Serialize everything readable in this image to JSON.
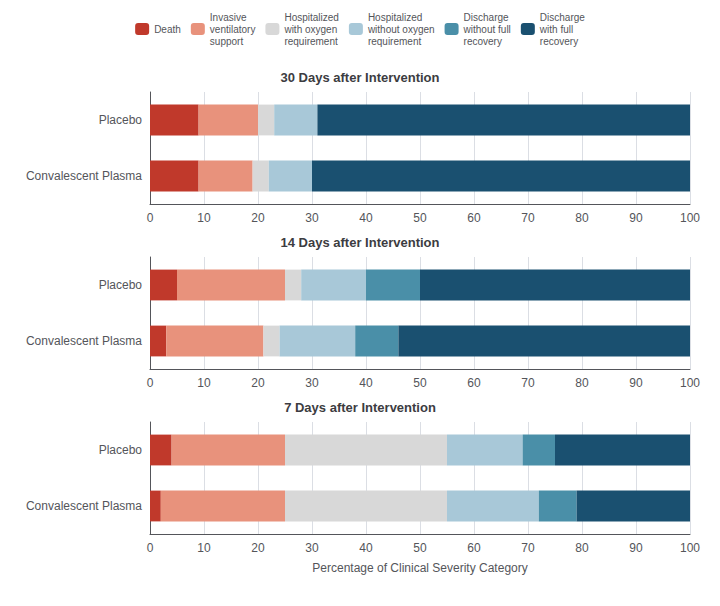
{
  "chart_data": [
    {
      "type": "bar",
      "title": "30 Days after Intervention",
      "orientation": "horizontal",
      "stacked": true,
      "grid": true,
      "legend": "top",
      "categories": [
        "Placebo",
        "Convalescent Plasma"
      ],
      "series": [
        {
          "name": "Death",
          "color": "#C0392B",
          "values": [
            9,
            9
          ]
        },
        {
          "name": "Invasive\nventilatory\nsupport",
          "color": "#E8927C",
          "values": [
            11,
            10
          ]
        },
        {
          "name": "Hospitalized\nwith oxygen\nrequirement",
          "color": "#D8D8D8",
          "values": [
            3,
            3
          ]
        },
        {
          "name": "Hospitalized\nwithout oxygen\nrequirement",
          "color": "#A8C8D8",
          "values": [
            8,
            8
          ]
        },
        {
          "name": "Discharge\nwithout full\nrecovery",
          "color": "#4A8FA8",
          "values": [
            0,
            0
          ]
        },
        {
          "name": "Discharge\nwith full\nrecovery",
          "color": "#1A5070",
          "values": [
            69,
            70
          ]
        }
      ],
      "xlim": [
        0,
        100
      ],
      "xticks": [
        0,
        10,
        20,
        30,
        40,
        50,
        60,
        70,
        80,
        90,
        100
      ]
    },
    {
      "type": "bar",
      "title": "14 Days after Intervention",
      "orientation": "horizontal",
      "stacked": true,
      "grid": true,
      "categories": [
        "Placebo",
        "Convalescent Plasma"
      ],
      "series": [
        {
          "name": "Death",
          "color": "#C0392B",
          "values": [
            5,
            3
          ]
        },
        {
          "name": "Invasive\nventilatory\nsupport",
          "color": "#E8927C",
          "values": [
            20,
            18
          ]
        },
        {
          "name": "Hospitalized\nwith oxygen\nrequirement",
          "color": "#D8D8D8",
          "values": [
            3,
            3
          ]
        },
        {
          "name": "Hospitalized\nwithout oxygen\nrequirement",
          "color": "#A8C8D8",
          "values": [
            12,
            14
          ]
        },
        {
          "name": "Discharge\nwithout full\nrecovery",
          "color": "#4A8FA8",
          "values": [
            10,
            8
          ]
        },
        {
          "name": "Discharge\nwith full\nrecovery",
          "color": "#1A5070",
          "values": [
            50,
            54
          ]
        }
      ],
      "xlim": [
        0,
        100
      ],
      "xticks": [
        0,
        10,
        20,
        30,
        40,
        50,
        60,
        70,
        80,
        90,
        100
      ]
    },
    {
      "type": "bar",
      "title": "7 Days after Intervention",
      "orientation": "horizontal",
      "stacked": true,
      "grid": true,
      "xlabel": "Percentage of Clinical Severity Category",
      "categories": [
        "Placebo",
        "Convalescent Plasma"
      ],
      "series": [
        {
          "name": "Death",
          "color": "#C0392B",
          "values": [
            4,
            2
          ]
        },
        {
          "name": "Invasive\nventilatory\nsupport",
          "color": "#E8927C",
          "values": [
            21,
            23
          ]
        },
        {
          "name": "Hospitalized\nwith oxygen\nrequirement",
          "color": "#D8D8D8",
          "values": [
            30,
            30
          ]
        },
        {
          "name": "Hospitalized\nwithout oxygen\nrequirement",
          "color": "#A8C8D8",
          "values": [
            14,
            17
          ]
        },
        {
          "name": "Discharge\nwithout full\nrecovery",
          "color": "#4A8FA8",
          "values": [
            6,
            7
          ]
        },
        {
          "name": "Discharge\nwith full\nrecovery",
          "color": "#1A5070",
          "values": [
            25,
            21
          ]
        }
      ],
      "xlim": [
        0,
        100
      ],
      "xticks": [
        0,
        10,
        20,
        30,
        40,
        50,
        60,
        70,
        80,
        90,
        100
      ]
    }
  ]
}
